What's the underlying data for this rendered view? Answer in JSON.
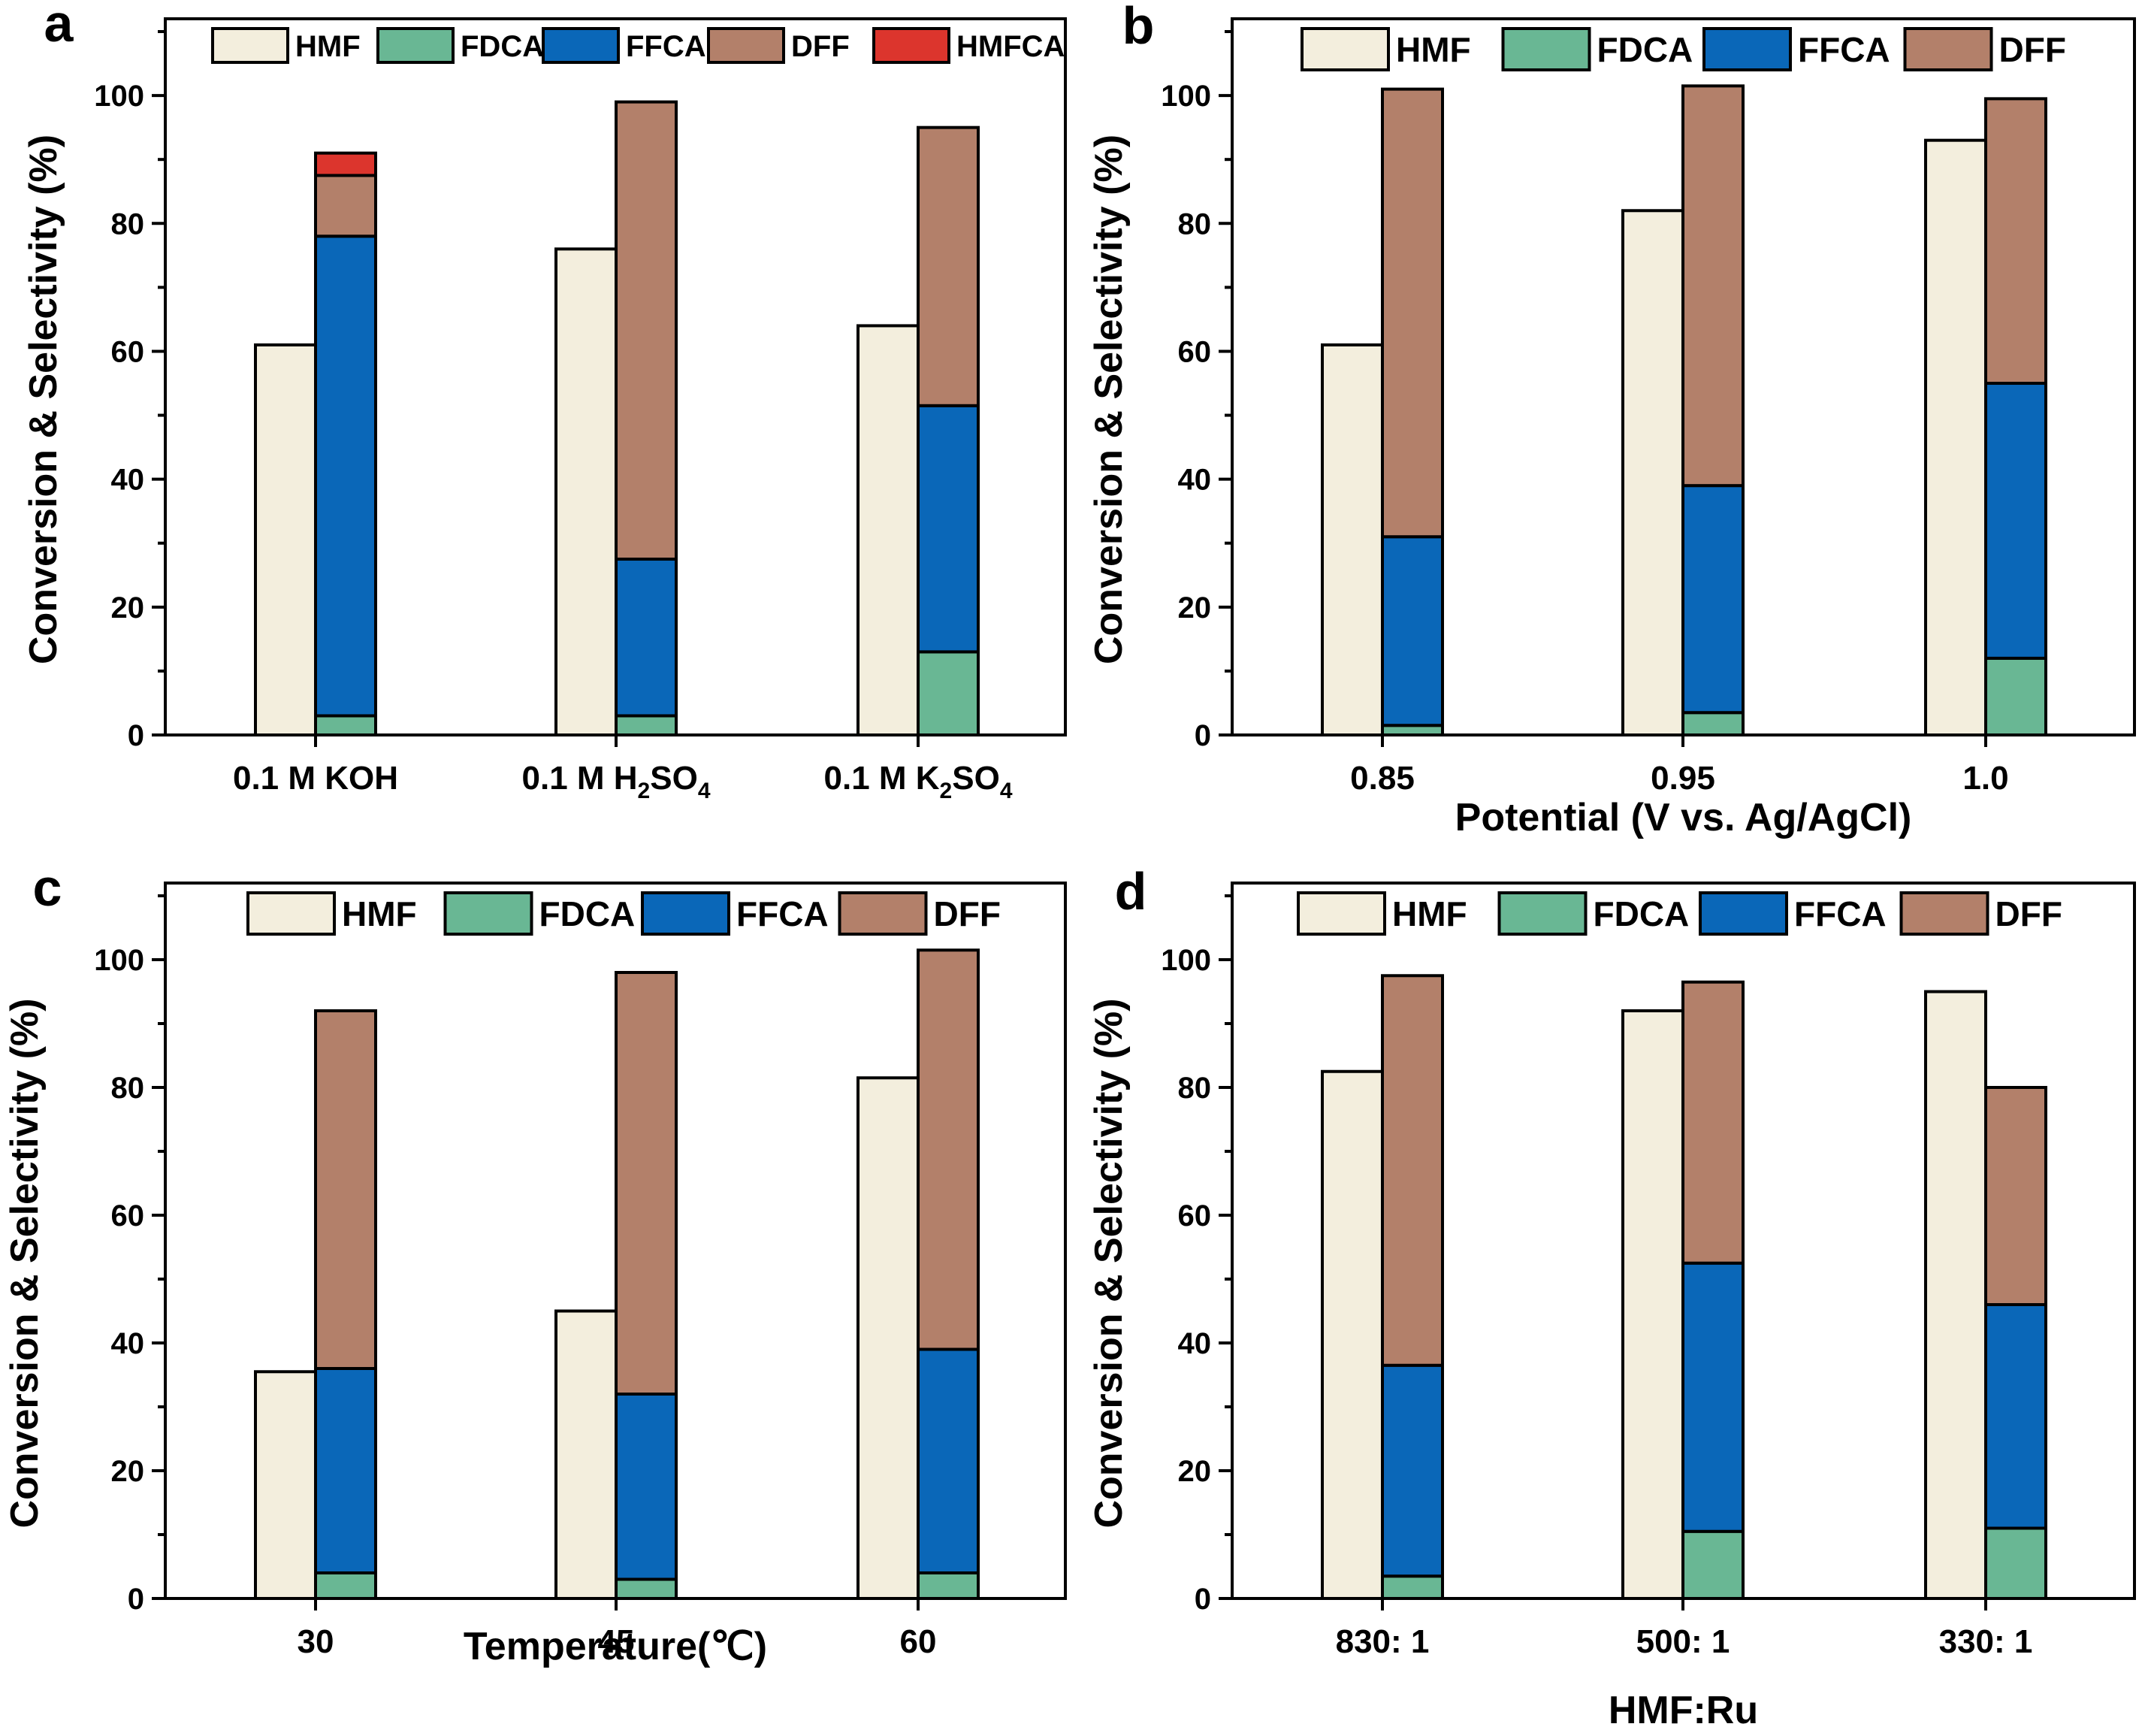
{
  "colors": {
    "HMF": "#f3eedd",
    "FDCA": "#69b794",
    "FFCA": "#0a67b8",
    "DFF": "#b3806a",
    "HMFCA": "#dc352d"
  },
  "chart_data": [
    {
      "panel": "a",
      "type": "bar",
      "ylabel": "Conversion & Selectivity (%)",
      "xlabel": "",
      "ylim": [
        0,
        112
      ],
      "yticks": [
        0,
        20,
        40,
        60,
        80,
        100
      ],
      "legend": [
        "HMF",
        "FDCA",
        "FFCA",
        "DFF",
        "HMFCA"
      ],
      "categories": [
        {
          "main": "0.1 M KOH",
          "parts": [
            {
              "t": "0.1 M KOH",
              "sub": false
            }
          ]
        },
        {
          "main": "0.1 M H2SO4",
          "parts": [
            {
              "t": "0.1 M H",
              "sub": false
            },
            {
              "t": "2",
              "sub": true
            },
            {
              "t": "SO",
              "sub": false
            },
            {
              "t": "4",
              "sub": true
            }
          ]
        },
        {
          "main": "0.1 M K2SO4",
          "parts": [
            {
              "t": "0.1 M K",
              "sub": false
            },
            {
              "t": "2",
              "sub": true
            },
            {
              "t": "SO",
              "sub": false
            },
            {
              "t": "4",
              "sub": true
            }
          ]
        }
      ],
      "conversion": {
        "name": "HMF",
        "values": [
          61,
          76,
          64
        ]
      },
      "selectivity": [
        {
          "name": "FDCA",
          "values": [
            3,
            3,
            13
          ]
        },
        {
          "name": "FFCA",
          "values": [
            75,
            24.5,
            38.5
          ]
        },
        {
          "name": "DFF",
          "values": [
            9.5,
            71.5,
            43.5
          ]
        },
        {
          "name": "HMFCA",
          "values": [
            3.5,
            0,
            0
          ]
        }
      ]
    },
    {
      "panel": "b",
      "type": "bar",
      "ylabel": "Conversion & Selectivity (%)",
      "xlabel": "Potential (V vs. Ag/AgCl)",
      "ylim": [
        0,
        112
      ],
      "yticks": [
        0,
        20,
        40,
        60,
        80,
        100
      ],
      "legend": [
        "HMF",
        "FDCA",
        "FFCA",
        "DFF"
      ],
      "categories": [
        {
          "main": "0.85",
          "parts": [
            {
              "t": "0.85",
              "sub": false
            }
          ]
        },
        {
          "main": "0.95",
          "parts": [
            {
              "t": "0.95",
              "sub": false
            }
          ]
        },
        {
          "main": "1.0",
          "parts": [
            {
              "t": "1.0",
              "sub": false
            }
          ]
        }
      ],
      "conversion": {
        "name": "HMF",
        "values": [
          61,
          82,
          93
        ]
      },
      "selectivity": [
        {
          "name": "FDCA",
          "values": [
            1.5,
            3.5,
            12
          ]
        },
        {
          "name": "FFCA",
          "values": [
            29.5,
            35.5,
            43
          ]
        },
        {
          "name": "DFF",
          "values": [
            70,
            62.5,
            44.5
          ]
        }
      ]
    },
    {
      "panel": "c",
      "type": "bar",
      "ylabel": "Conversion & Selectivity (%)",
      "xlabel": "Temperature(℃)",
      "ylim": [
        0,
        112
      ],
      "yticks": [
        0,
        20,
        40,
        60,
        80,
        100
      ],
      "legend": [
        "HMF",
        "FDCA",
        "FFCA",
        "DFF"
      ],
      "categories": [
        {
          "main": "30",
          "parts": [
            {
              "t": "30",
              "sub": false
            }
          ]
        },
        {
          "main": "45",
          "parts": [
            {
              "t": "45",
              "sub": false
            }
          ]
        },
        {
          "main": "60",
          "parts": [
            {
              "t": "60",
              "sub": false
            }
          ]
        }
      ],
      "conversion": {
        "name": "HMF",
        "values": [
          35.5,
          45,
          81.5
        ]
      },
      "selectivity": [
        {
          "name": "FDCA",
          "values": [
            4,
            3,
            4
          ]
        },
        {
          "name": "FFCA",
          "values": [
            32,
            29,
            35
          ]
        },
        {
          "name": "DFF",
          "values": [
            56,
            66,
            62.5
          ]
        }
      ]
    },
    {
      "panel": "d",
      "type": "bar",
      "ylabel": "Conversion & Selectivity (%)",
      "xlabel": "HMF:Ru",
      "ylim": [
        0,
        112
      ],
      "yticks": [
        0,
        20,
        40,
        60,
        80,
        100
      ],
      "legend": [
        "HMF",
        "FDCA",
        "FFCA",
        "DFF"
      ],
      "categories": [
        {
          "main": "830: 1",
          "parts": [
            {
              "t": "830: 1",
              "sub": false
            }
          ]
        },
        {
          "main": "500: 1",
          "parts": [
            {
              "t": "500: 1",
              "sub": false
            }
          ]
        },
        {
          "main": "330: 1",
          "parts": [
            {
              "t": "330: 1",
              "sub": false
            }
          ]
        }
      ],
      "conversion": {
        "name": "HMF",
        "values": [
          82.5,
          92,
          95
        ]
      },
      "selectivity": [
        {
          "name": "FDCA",
          "values": [
            3.5,
            10.5,
            11
          ]
        },
        {
          "name": "FFCA",
          "values": [
            33,
            42,
            35
          ]
        },
        {
          "name": "DFF",
          "values": [
            61,
            44,
            34
          ]
        }
      ]
    }
  ]
}
